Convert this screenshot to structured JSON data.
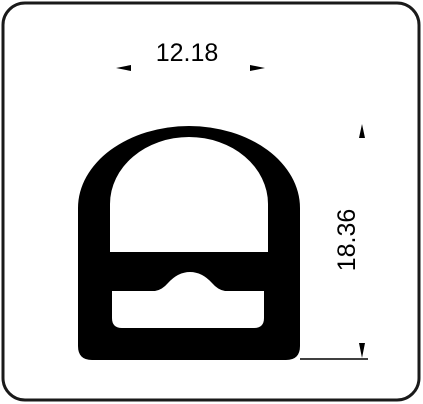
{
  "drawing": {
    "width_label": "12.18",
    "height_label": "18.36"
  },
  "colors": {
    "outline": "#1a1a1a",
    "profile": "#000000",
    "background": "#ffffff"
  }
}
